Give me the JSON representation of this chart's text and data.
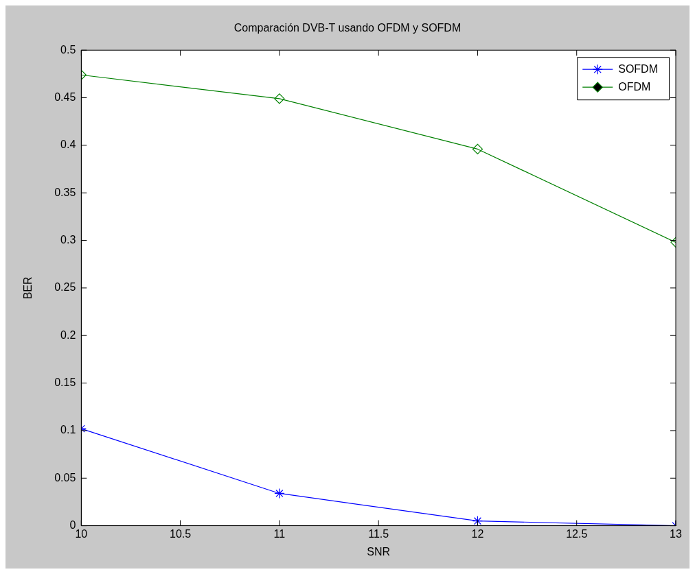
{
  "chart_data": {
    "type": "line",
    "title": "Comparación DVB-T usando OFDM y SOFDM",
    "xlabel": "SNR",
    "ylabel": "BER",
    "x": [
      10,
      11,
      12,
      13
    ],
    "series": [
      {
        "name": "SOFDM",
        "color": "#0000ff",
        "marker": "cross",
        "values": [
          0.102,
          0.034,
          0.005,
          0.0
        ]
      },
      {
        "name": "OFDM",
        "color": "#008000",
        "marker": "diamond",
        "values": [
          0.474,
          0.449,
          0.396,
          0.298
        ]
      }
    ],
    "xlim": [
      10,
      13
    ],
    "xticks": [
      10,
      10.5,
      11,
      11.5,
      12,
      12.5,
      13
    ],
    "ylim": [
      0,
      0.5
    ],
    "yticks": [
      0,
      0.05,
      0.1,
      0.15,
      0.2,
      0.25,
      0.3,
      0.35,
      0.4,
      0.45,
      0.5
    ],
    "grid": false,
    "legend": "top right",
    "line_style": "solid"
  }
}
